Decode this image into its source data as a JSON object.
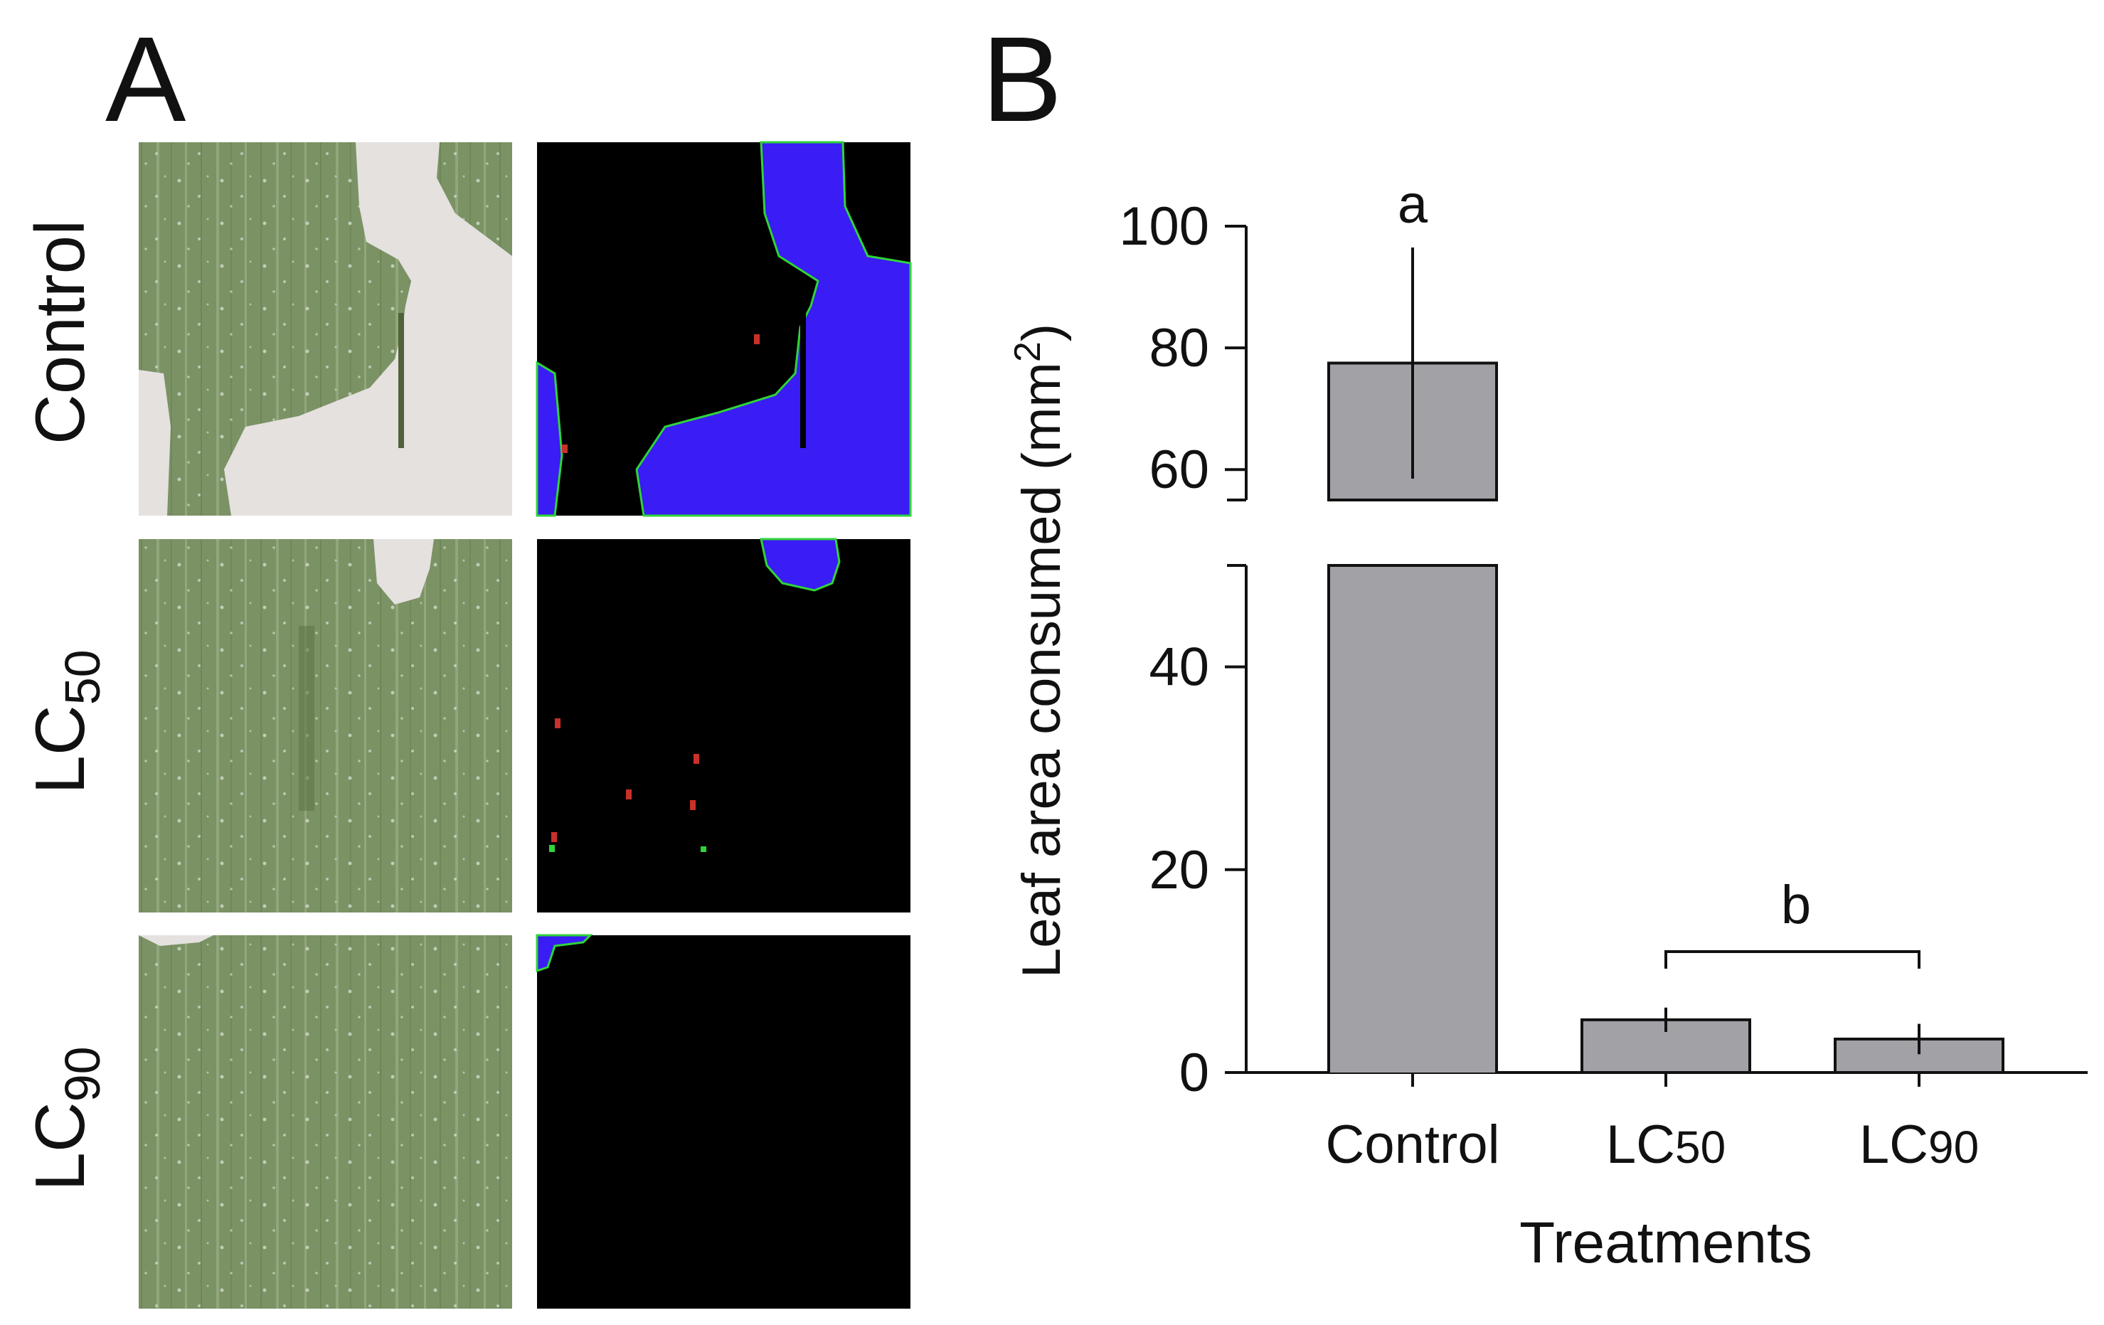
{
  "panel_a": {
    "letter": "A",
    "rows": [
      {
        "label": "Control",
        "sub": ""
      },
      {
        "label": "LC",
        "sub": "50"
      },
      {
        "label": "LC",
        "sub": "90"
      }
    ]
  },
  "panel_b": {
    "letter": "B",
    "sig_a": "a",
    "sig_b": "b",
    "tick_labels": [
      "0",
      "20",
      "40",
      "60",
      "80",
      "100"
    ],
    "ylabel_main": "Leaf area consumed (mm",
    "ylabel_sup": "2",
    "ylabel_end": ")",
    "xlabel": "Treatments",
    "cat_labels": [
      {
        "main": "Control",
        "sub": ""
      },
      {
        "main": "LC",
        "sub": "50"
      },
      {
        "main": "LC",
        "sub": "90"
      }
    ]
  },
  "colors": {
    "bar_fill": "#a2a2a6",
    "leaf_green": "#7b9265",
    "leaf_light": "#9cb084",
    "consumed_area": "#e4e1df",
    "mask_black": "#000000",
    "mask_blue": "#3a1cf5",
    "mask_edge_green": "#2fd43a",
    "mask_red": "#c8302a"
  },
  "chart_data": {
    "type": "bar",
    "categories": [
      "Control",
      "LC50",
      "LC90"
    ],
    "values": [
      77.5,
      5.2,
      3.3
    ],
    "errors": [
      19,
      1.2,
      1.5
    ],
    "significance": [
      "a",
      "b",
      "b"
    ],
    "xlabel": "Treatments",
    "ylabel": "Leaf area consumed (mm2)",
    "ylim": [
      0,
      100
    ],
    "yticks": [
      0,
      20,
      40,
      60,
      80,
      100
    ],
    "y_axis_break": [
      50,
      55
    ],
    "grid": false
  }
}
